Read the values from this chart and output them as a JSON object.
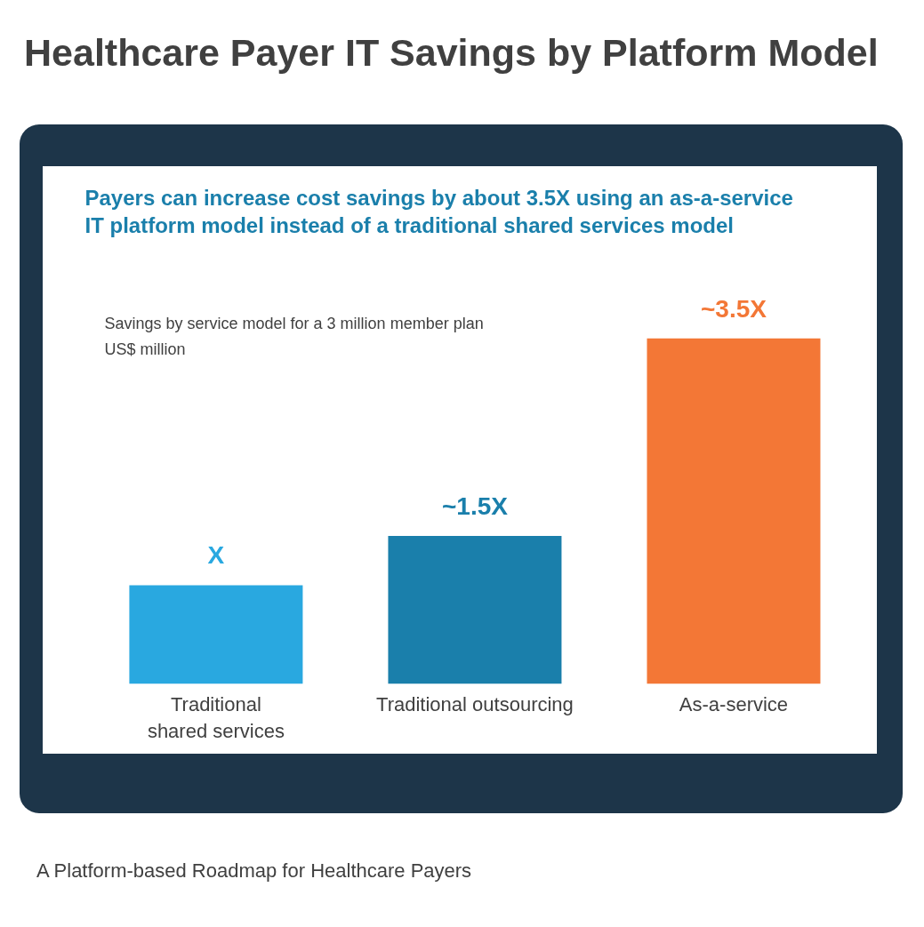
{
  "chart_data": {
    "type": "bar",
    "title": "Healthcare Payer IT Savings by Platform Model",
    "subtitle": "Payers can increase cost savings by about 3.5X using an as-a-service IT platform model instead of a traditional shared services model",
    "annotations": [
      "Savings by service model for a 3 million member plan",
      "US$ million",
      "A Platform-based Roadmap for Healthcare Payers"
    ],
    "categories": [
      "Traditional shared services",
      "Traditional outsourcing",
      "As-a-service"
    ],
    "values": [
      1,
      1.5,
      3.5
    ],
    "colors": [
      "#29a8e0",
      "#1a7fab",
      "#f37736"
    ],
    "value_labels": [
      "X",
      "~1.5X",
      "~3.5X"
    ],
    "tick_labels": "x",
    "grid": false
  }
}
